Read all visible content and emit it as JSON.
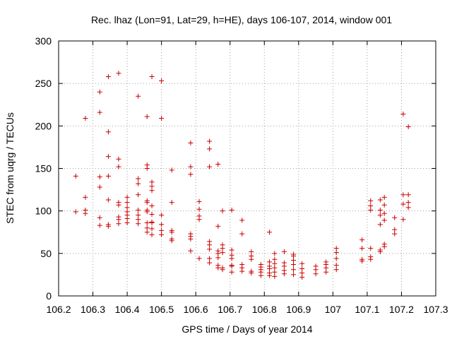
{
  "chart_data": {
    "type": "scatter",
    "title": "Rec. lhaz (Lon=91, Lat=29, h=HE), days 106-107, 2014, window 001",
    "xlabel": "GPS time / Days of year 2014",
    "ylabel": "STEC from uqrg / TECUs",
    "xlim": [
      106.2,
      107.3
    ],
    "ylim": [
      0,
      300
    ],
    "x_ticks": [
      "106.2",
      "106.3",
      "106.4",
      "106.5",
      "106.6",
      "106.7",
      "106.8",
      "106.9",
      "107",
      "107.1",
      "107.2",
      "107.3"
    ],
    "y_ticks": [
      "0",
      "50",
      "100",
      "150",
      "200",
      "250",
      "300"
    ],
    "grid": true,
    "legend": "none",
    "marker": "+",
    "color": "#cc0000",
    "points": [
      [
        106.25,
        99
      ],
      [
        106.25,
        141
      ],
      [
        106.278,
        97
      ],
      [
        106.278,
        101
      ],
      [
        106.278,
        116
      ],
      [
        106.278,
        209
      ],
      [
        106.32,
        83
      ],
      [
        106.32,
        92
      ],
      [
        106.32,
        128
      ],
      [
        106.32,
        140
      ],
      [
        106.32,
        216
      ],
      [
        106.32,
        240
      ],
      [
        106.345,
        82
      ],
      [
        106.345,
        84
      ],
      [
        106.345,
        113
      ],
      [
        106.345,
        141
      ],
      [
        106.345,
        164
      ],
      [
        106.345,
        193
      ],
      [
        106.345,
        258
      ],
      [
        106.375,
        85
      ],
      [
        106.375,
        90
      ],
      [
        106.375,
        93
      ],
      [
        106.375,
        107
      ],
      [
        106.375,
        110
      ],
      [
        106.375,
        152
      ],
      [
        106.375,
        161
      ],
      [
        106.375,
        262
      ],
      [
        106.4,
        86
      ],
      [
        106.4,
        91
      ],
      [
        106.4,
        95
      ],
      [
        106.4,
        99
      ],
      [
        106.4,
        104
      ],
      [
        106.4,
        110
      ],
      [
        106.4,
        116
      ],
      [
        106.432,
        85
      ],
      [
        106.432,
        90
      ],
      [
        106.432,
        95
      ],
      [
        106.432,
        101
      ],
      [
        106.432,
        119
      ],
      [
        106.432,
        132
      ],
      [
        106.432,
        138
      ],
      [
        106.432,
        235
      ],
      [
        106.458,
        75
      ],
      [
        106.458,
        80
      ],
      [
        106.458,
        86
      ],
      [
        106.458,
        99
      ],
      [
        106.458,
        101
      ],
      [
        106.458,
        110
      ],
      [
        106.458,
        112
      ],
      [
        106.458,
        150
      ],
      [
        106.458,
        154
      ],
      [
        106.458,
        211
      ],
      [
        106.472,
        72
      ],
      [
        106.472,
        79
      ],
      [
        106.472,
        86
      ],
      [
        106.472,
        87
      ],
      [
        106.472,
        96
      ],
      [
        106.472,
        106
      ],
      [
        106.472,
        124
      ],
      [
        106.472,
        129
      ],
      [
        106.472,
        134
      ],
      [
        106.472,
        258
      ],
      [
        106.5,
        72
      ],
      [
        106.5,
        77
      ],
      [
        106.5,
        84
      ],
      [
        106.5,
        95
      ],
      [
        106.5,
        209
      ],
      [
        106.5,
        253
      ],
      [
        106.53,
        65
      ],
      [
        106.53,
        67
      ],
      [
        106.53,
        75
      ],
      [
        106.53,
        77
      ],
      [
        106.53,
        110
      ],
      [
        106.53,
        148
      ],
      [
        106.585,
        53
      ],
      [
        106.585,
        67
      ],
      [
        106.585,
        70
      ],
      [
        106.585,
        73
      ],
      [
        106.585,
        143
      ],
      [
        106.585,
        152
      ],
      [
        106.585,
        180
      ],
      [
        106.61,
        44
      ],
      [
        106.61,
        90
      ],
      [
        106.61,
        94
      ],
      [
        106.61,
        102
      ],
      [
        106.61,
        111
      ],
      [
        106.64,
        39
      ],
      [
        106.64,
        44
      ],
      [
        106.64,
        55
      ],
      [
        106.64,
        60
      ],
      [
        106.64,
        64
      ],
      [
        106.64,
        152
      ],
      [
        106.64,
        173
      ],
      [
        106.64,
        182
      ],
      [
        106.665,
        33
      ],
      [
        106.665,
        36
      ],
      [
        106.665,
        45
      ],
      [
        106.665,
        50
      ],
      [
        106.665,
        53
      ],
      [
        106.665,
        82
      ],
      [
        106.665,
        155
      ],
      [
        106.678,
        31
      ],
      [
        106.678,
        33
      ],
      [
        106.678,
        51
      ],
      [
        106.678,
        56
      ],
      [
        106.678,
        60
      ],
      [
        106.678,
        100
      ],
      [
        106.705,
        28
      ],
      [
        106.705,
        35
      ],
      [
        106.705,
        36
      ],
      [
        106.705,
        44
      ],
      [
        106.705,
        48
      ],
      [
        106.705,
        54
      ],
      [
        106.705,
        101
      ],
      [
        106.735,
        29
      ],
      [
        106.735,
        33
      ],
      [
        106.735,
        37
      ],
      [
        106.735,
        73
      ],
      [
        106.735,
        89
      ],
      [
        106.762,
        27
      ],
      [
        106.762,
        29
      ],
      [
        106.762,
        43
      ],
      [
        106.762,
        47
      ],
      [
        106.762,
        52
      ],
      [
        106.79,
        24
      ],
      [
        106.79,
        28
      ],
      [
        106.79,
        31
      ],
      [
        106.79,
        34
      ],
      [
        106.79,
        37
      ],
      [
        106.815,
        24
      ],
      [
        106.815,
        27
      ],
      [
        106.815,
        32
      ],
      [
        106.815,
        35
      ],
      [
        106.815,
        40
      ],
      [
        106.815,
        75
      ],
      [
        106.83,
        23
      ],
      [
        106.83,
        28
      ],
      [
        106.83,
        33
      ],
      [
        106.83,
        38
      ],
      [
        106.83,
        43
      ],
      [
        106.83,
        50
      ],
      [
        106.858,
        26
      ],
      [
        106.858,
        30
      ],
      [
        106.858,
        35
      ],
      [
        106.858,
        39
      ],
      [
        106.858,
        52
      ],
      [
        106.885,
        25
      ],
      [
        106.885,
        31
      ],
      [
        106.885,
        37
      ],
      [
        106.885,
        42
      ],
      [
        106.885,
        47
      ],
      [
        106.885,
        49
      ],
      [
        106.91,
        22
      ],
      [
        106.91,
        27
      ],
      [
        106.91,
        32
      ],
      [
        106.91,
        38
      ],
      [
        106.95,
        26
      ],
      [
        106.95,
        31
      ],
      [
        106.95,
        35
      ],
      [
        106.98,
        28
      ],
      [
        106.98,
        33
      ],
      [
        106.98,
        37
      ],
      [
        106.98,
        40
      ],
      [
        107.01,
        31
      ],
      [
        107.01,
        36
      ],
      [
        107.01,
        44
      ],
      [
        107.01,
        51
      ],
      [
        107.01,
        56
      ],
      [
        107.085,
        41
      ],
      [
        107.085,
        43
      ],
      [
        107.085,
        56
      ],
      [
        107.085,
        66
      ],
      [
        107.11,
        43
      ],
      [
        107.11,
        46
      ],
      [
        107.11,
        56
      ],
      [
        107.11,
        101
      ],
      [
        107.11,
        106
      ],
      [
        107.11,
        112
      ],
      [
        107.138,
        52
      ],
      [
        107.138,
        54
      ],
      [
        107.138,
        84
      ],
      [
        107.138,
        95
      ],
      [
        107.138,
        101
      ],
      [
        107.138,
        113
      ],
      [
        107.15,
        58
      ],
      [
        107.15,
        61
      ],
      [
        107.15,
        89
      ],
      [
        107.15,
        97
      ],
      [
        107.15,
        107
      ],
      [
        107.15,
        116
      ],
      [
        107.18,
        73
      ],
      [
        107.18,
        78
      ],
      [
        107.18,
        92
      ],
      [
        107.205,
        90
      ],
      [
        107.205,
        108
      ],
      [
        107.205,
        119
      ],
      [
        107.205,
        214
      ],
      [
        107.22,
        104
      ],
      [
        107.22,
        110
      ],
      [
        107.22,
        119
      ],
      [
        107.22,
        199
      ]
    ]
  }
}
